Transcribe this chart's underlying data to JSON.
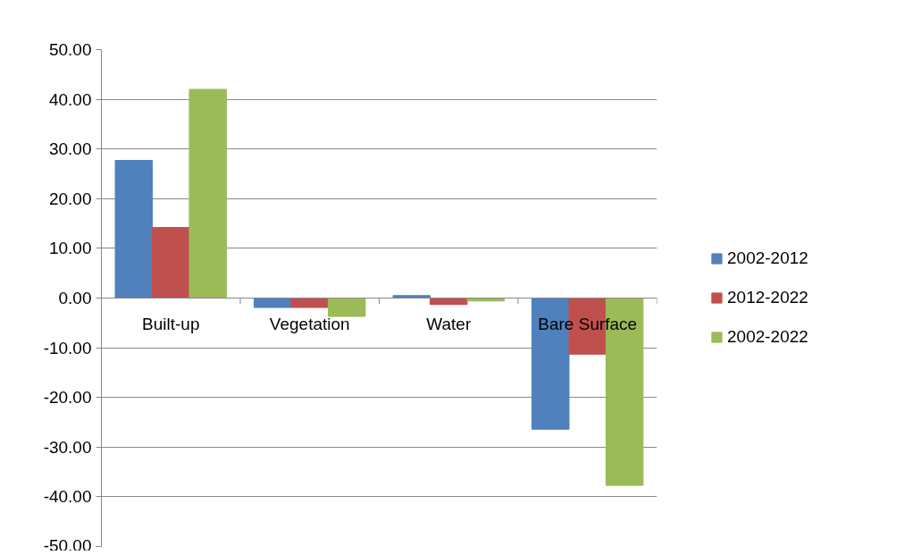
{
  "chart_data": {
    "type": "bar",
    "categories": [
      "Built-up",
      "Vegetation",
      "Water",
      "Bare Surface"
    ],
    "series": [
      {
        "name": "2002-2012",
        "color": "#4f81bd",
        "values": [
          27.7,
          -1.9,
          0.5,
          -26.4
        ]
      },
      {
        "name": "2012-2022",
        "color": "#c0504d",
        "values": [
          14.2,
          -1.9,
          -1.3,
          -11.3
        ]
      },
      {
        "name": "2002-2022",
        "color": "#9bbb59",
        "values": [
          42.0,
          -3.7,
          -0.6,
          -37.7
        ]
      }
    ],
    "ylim": [
      -50,
      50
    ],
    "yticks": [
      {
        "value": -50,
        "label": "-50.00"
      },
      {
        "value": -40,
        "label": "-40.00"
      },
      {
        "value": -30,
        "label": "-30.00"
      },
      {
        "value": -20,
        "label": "-20.00"
      },
      {
        "value": -10,
        "label": "-10.00"
      },
      {
        "value": 0,
        "label": "0.00"
      },
      {
        "value": 10,
        "label": "10.00"
      },
      {
        "value": 20,
        "label": "20.00"
      },
      {
        "value": 30,
        "label": "30.00"
      },
      {
        "value": 40,
        "label": "40.00"
      },
      {
        "value": 50,
        "label": "50.00"
      }
    ],
    "grid": "y",
    "legend": "right"
  }
}
